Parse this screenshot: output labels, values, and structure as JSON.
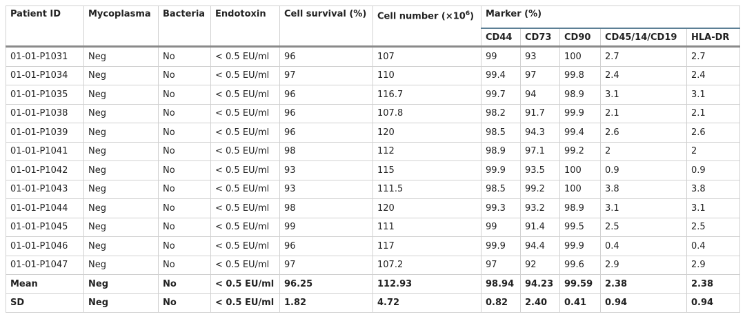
{
  "headers": {
    "patient_id": "Patient ID",
    "mycoplasma": "Mycoplasma",
    "bacteria": "Bacteria",
    "endotoxin": "Endotoxin",
    "cell_survival": "Cell survival (%)",
    "cell_number_prefix": "Cell number (×10",
    "cell_number_exp": "6",
    "cell_number_suffix": ")",
    "marker": "Marker (%)",
    "markers": [
      "CD44",
      "CD73",
      "CD90",
      "CD45/14/CD19",
      "HLA-DR"
    ]
  },
  "rows": [
    [
      "01-01-P1031",
      "Neg",
      "No",
      "< 0.5 EU/ml",
      "96",
      "107",
      "99",
      "93",
      "100",
      "2.7",
      "2.7"
    ],
    [
      "01-01-P1034",
      "Neg",
      "No",
      "< 0.5 EU/ml",
      "97",
      "110",
      "99.4",
      "97",
      "99.8",
      "2.4",
      "2.4"
    ],
    [
      "01-01-P1035",
      "Neg",
      "No",
      "< 0.5 EU/ml",
      "96",
      "116.7",
      "99.7",
      "94",
      "98.9",
      "3.1",
      "3.1"
    ],
    [
      "01-01-P1038",
      "Neg",
      "No",
      "< 0.5 EU/ml",
      "96",
      "107.8",
      "98.2",
      "91.7",
      "99.9",
      "2.1",
      "2.1"
    ],
    [
      "01-01-P1039",
      "Neg",
      "No",
      "< 0.5 EU/ml",
      "96",
      "120",
      "98.5",
      "94.3",
      "99.4",
      "2.6",
      "2.6"
    ],
    [
      "01-01-P1041",
      "Neg",
      "No",
      "< 0.5 EU/ml",
      "98",
      "112",
      "98.9",
      "97.1",
      "99.2",
      "2",
      "2"
    ],
    [
      "01-01-P1042",
      "Neg",
      "No",
      "< 0.5 EU/ml",
      "93",
      "115",
      "99.9",
      "93.5",
      "100",
      "0.9",
      "0.9"
    ],
    [
      "01-01-P1043",
      "Neg",
      "No",
      "< 0.5 EU/ml",
      "93",
      "111.5",
      "98.5",
      "99.2",
      "100",
      "3.8",
      "3.8"
    ],
    [
      "01-01-P1044",
      "Neg",
      "No",
      "< 0.5 EU/ml",
      "98",
      "120",
      "99.3",
      "93.2",
      "98.9",
      "3.1",
      "3.1"
    ],
    [
      "01-01-P1045",
      "Neg",
      "No",
      "< 0.5 EU/ml",
      "99",
      "111",
      "99",
      "91.4",
      "99.5",
      "2.5",
      "2.5"
    ],
    [
      "01-01-P1046",
      "Neg",
      "No",
      "< 0.5 EU/ml",
      "96",
      "117",
      "99.9",
      "94.4",
      "99.9",
      "0.4",
      "0.4"
    ],
    [
      "01-01-P1047",
      "Neg",
      "No",
      "< 0.5 EU/ml",
      "97",
      "107.2",
      "97",
      "92",
      "99.6",
      "2.9",
      "2.9"
    ],
    [
      "Mean",
      "Neg",
      "No",
      "< 0.5 EU/ml",
      "96.25",
      "112.93",
      "98.94",
      "94.23",
      "99.59",
      "2.38",
      "2.38"
    ],
    [
      "SD",
      "Neg",
      "No",
      "< 0.5 EU/ml",
      "1.82",
      "4.72",
      "0.82",
      "2.40",
      "0.41",
      "0.94",
      "0.94"
    ]
  ],
  "bold_rows": [
    12,
    13
  ]
}
